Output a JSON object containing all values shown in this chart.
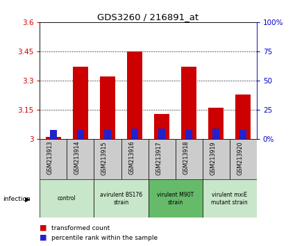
{
  "title": "GDS3260 / 216891_at",
  "samples": [
    "GSM213913",
    "GSM213914",
    "GSM213915",
    "GSM213916",
    "GSM213917",
    "GSM213918",
    "GSM213919",
    "GSM213920"
  ],
  "red_values": [
    3.01,
    3.37,
    3.32,
    3.45,
    3.13,
    3.37,
    3.16,
    3.23
  ],
  "blue_percentiles": [
    8,
    8,
    8,
    9,
    9,
    8,
    9,
    8
  ],
  "ylim_left": [
    3.0,
    3.6
  ],
  "yticks_left": [
    3.0,
    3.15,
    3.3,
    3.45,
    3.6
  ],
  "ytick_labels_left": [
    "3",
    "3.15",
    "3.3",
    "3.45",
    "3.6"
  ],
  "ylim_right": [
    0,
    100
  ],
  "yticks_right": [
    0,
    25,
    50,
    75,
    100
  ],
  "ytick_labels_right": [
    "0%",
    "25",
    "50",
    "75",
    "100%"
  ],
  "groups": [
    {
      "label": "control",
      "start": 0,
      "end": 2
    },
    {
      "label": "avirulent BS176\nstrain",
      "start": 2,
      "end": 4
    },
    {
      "label": "virulent M90T\nstrain",
      "start": 4,
      "end": 6
    },
    {
      "label": "virulent mxiE\nmutant strain",
      "start": 6,
      "end": 8
    }
  ],
  "group_colors": [
    "#c8e6c9",
    "#c8e6c9",
    "#66bb6a",
    "#c8e6c9"
  ],
  "infection_label": "infection",
  "red_color": "#cc0000",
  "blue_color": "#2222cc",
  "base_value": 3.0,
  "bg_color": "#ffffff",
  "sample_area_color": "#cccccc",
  "left_axis_color": "#cc0000",
  "right_axis_color": "#0000cc"
}
